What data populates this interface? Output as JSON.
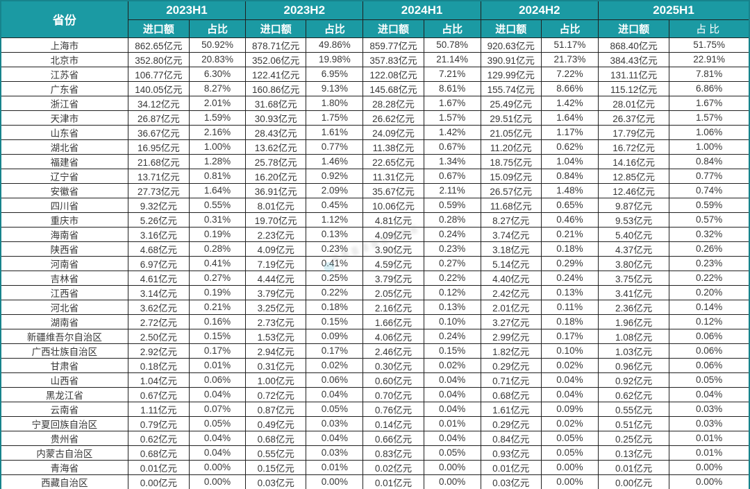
{
  "colors": {
    "header_bg": "#1b9aa3",
    "header_text": "#ffffff",
    "body_text": "#373737",
    "border": "#1f1f1f",
    "watermark_dot": "#6ec3d4"
  },
  "header": {
    "province_label": "省份",
    "amount_label": "进口额",
    "share_label": "占比",
    "periods": [
      {
        "label": "2023H1"
      },
      {
        "label": "2023H2"
      },
      {
        "label": "2024H1"
      },
      {
        "label": "2024H2"
      },
      {
        "label": "2025H1"
      }
    ]
  },
  "rows": [
    {
      "province": "上海市",
      "cells": [
        "862.65亿元",
        "50.92%",
        "878.71亿元",
        "49.86%",
        "859.77亿元",
        "50.78%",
        "920.63亿元",
        "51.17%",
        "868.40亿元",
        "51.75%"
      ]
    },
    {
      "province": "北京市",
      "cells": [
        "352.80亿元",
        "20.83%",
        "352.06亿元",
        "19.98%",
        "357.83亿元",
        "21.14%",
        "390.91亿元",
        "21.73%",
        "384.43亿元",
        "22.91%"
      ]
    },
    {
      "province": "江苏省",
      "cells": [
        "106.77亿元",
        "6.30%",
        "122.41亿元",
        "6.95%",
        "122.08亿元",
        "7.21%",
        "129.99亿元",
        "7.22%",
        "131.11亿元",
        "7.81%"
      ]
    },
    {
      "province": "广东省",
      "cells": [
        "140.05亿元",
        "8.27%",
        "160.86亿元",
        "9.13%",
        "145.68亿元",
        "8.61%",
        "155.74亿元",
        "8.66%",
        "115.12亿元",
        "6.86%"
      ]
    },
    {
      "province": "浙江省",
      "cells": [
        "34.12亿元",
        "2.01%",
        "31.68亿元",
        "1.80%",
        "28.28亿元",
        "1.67%",
        "25.49亿元",
        "1.42%",
        "28.01亿元",
        "1.67%"
      ]
    },
    {
      "province": "天津市",
      "cells": [
        "26.87亿元",
        "1.59%",
        "30.93亿元",
        "1.75%",
        "26.62亿元",
        "1.57%",
        "29.51亿元",
        "1.64%",
        "26.37亿元",
        "1.57%"
      ]
    },
    {
      "province": "山东省",
      "cells": [
        "36.67亿元",
        "2.16%",
        "28.43亿元",
        "1.61%",
        "24.09亿元",
        "1.42%",
        "21.05亿元",
        "1.17%",
        "17.79亿元",
        "1.06%"
      ]
    },
    {
      "province": "湖北省",
      "cells": [
        "16.95亿元",
        "1.00%",
        "13.62亿元",
        "0.77%",
        "11.38亿元",
        "0.67%",
        "11.20亿元",
        "0.62%",
        "16.72亿元",
        "1.00%"
      ]
    },
    {
      "province": "福建省",
      "cells": [
        "21.68亿元",
        "1.28%",
        "25.78亿元",
        "1.46%",
        "22.65亿元",
        "1.34%",
        "18.75亿元",
        "1.04%",
        "14.16亿元",
        "0.84%"
      ]
    },
    {
      "province": "辽宁省",
      "cells": [
        "13.71亿元",
        "0.81%",
        "16.20亿元",
        "0.92%",
        "11.31亿元",
        "0.67%",
        "15.09亿元",
        "0.84%",
        "12.85亿元",
        "0.77%"
      ]
    },
    {
      "province": "安徽省",
      "cells": [
        "27.73亿元",
        "1.64%",
        "36.91亿元",
        "2.09%",
        "35.67亿元",
        "2.11%",
        "26.57亿元",
        "1.48%",
        "12.46亿元",
        "0.74%"
      ]
    },
    {
      "province": "四川省",
      "cells": [
        "9.32亿元",
        "0.55%",
        "8.01亿元",
        "0.45%",
        "10.06亿元",
        "0.59%",
        "11.68亿元",
        "0.65%",
        "9.87亿元",
        "0.59%"
      ]
    },
    {
      "province": "重庆市",
      "cells": [
        "5.26亿元",
        "0.31%",
        "19.70亿元",
        "1.12%",
        "4.81亿元",
        "0.28%",
        "8.27亿元",
        "0.46%",
        "9.53亿元",
        "0.57%"
      ]
    },
    {
      "province": "海南省",
      "cells": [
        "3.16亿元",
        "0.19%",
        "2.23亿元",
        "0.13%",
        "4.09亿元",
        "0.24%",
        "3.74亿元",
        "0.21%",
        "5.40亿元",
        "0.32%"
      ]
    },
    {
      "province": "陕西省",
      "cells": [
        "4.68亿元",
        "0.28%",
        "4.09亿元",
        "0.23%",
        "3.90亿元",
        "0.23%",
        "3.18亿元",
        "0.18%",
        "4.37亿元",
        "0.26%"
      ]
    },
    {
      "province": "河南省",
      "cells": [
        "6.97亿元",
        "0.41%",
        "7.19亿元",
        "0.41%",
        "4.59亿元",
        "0.27%",
        "5.14亿元",
        "0.29%",
        "3.80亿元",
        "0.23%"
      ]
    },
    {
      "province": "吉林省",
      "cells": [
        "4.61亿元",
        "0.27%",
        "4.44亿元",
        "0.25%",
        "3.79亿元",
        "0.22%",
        "4.40亿元",
        "0.24%",
        "3.75亿元",
        "0.22%"
      ]
    },
    {
      "province": "江西省",
      "cells": [
        "3.14亿元",
        "0.19%",
        "3.79亿元",
        "0.22%",
        "2.05亿元",
        "0.12%",
        "2.42亿元",
        "0.13%",
        "3.41亿元",
        "0.20%"
      ]
    },
    {
      "province": "河北省",
      "cells": [
        "3.62亿元",
        "0.21%",
        "3.25亿元",
        "0.18%",
        "2.16亿元",
        "0.13%",
        "2.01亿元",
        "0.11%",
        "2.36亿元",
        "0.14%"
      ]
    },
    {
      "province": "湖南省",
      "cells": [
        "2.72亿元",
        "0.16%",
        "2.73亿元",
        "0.15%",
        "1.66亿元",
        "0.10%",
        "3.27亿元",
        "0.18%",
        "1.96亿元",
        "0.12%"
      ]
    },
    {
      "province": "新疆维吾尔自治区",
      "cells": [
        "2.50亿元",
        "0.15%",
        "1.53亿元",
        "0.09%",
        "4.06亿元",
        "0.24%",
        "2.99亿元",
        "0.17%",
        "1.08亿元",
        "0.06%"
      ]
    },
    {
      "province": "广西壮族自治区",
      "cells": [
        "2.92亿元",
        "0.17%",
        "2.94亿元",
        "0.17%",
        "2.46亿元",
        "0.15%",
        "1.82亿元",
        "0.10%",
        "1.03亿元",
        "0.06%"
      ]
    },
    {
      "province": "甘肃省",
      "cells": [
        "0.18亿元",
        "0.01%",
        "0.31亿元",
        "0.02%",
        "0.30亿元",
        "0.02%",
        "0.29亿元",
        "0.02%",
        "0.96亿元",
        "0.06%"
      ]
    },
    {
      "province": "山西省",
      "cells": [
        "1.04亿元",
        "0.06%",
        "1.00亿元",
        "0.06%",
        "0.60亿元",
        "0.04%",
        "0.71亿元",
        "0.04%",
        "0.92亿元",
        "0.05%"
      ]
    },
    {
      "province": "黑龙江省",
      "cells": [
        "0.67亿元",
        "0.04%",
        "0.72亿元",
        "0.04%",
        "0.70亿元",
        "0.04%",
        "0.68亿元",
        "0.04%",
        "0.62亿元",
        "0.04%"
      ]
    },
    {
      "province": "云南省",
      "cells": [
        "1.11亿元",
        "0.07%",
        "0.87亿元",
        "0.05%",
        "0.76亿元",
        "0.04%",
        "1.61亿元",
        "0.09%",
        "0.55亿元",
        "0.03%"
      ]
    },
    {
      "province": "宁夏回族自治区",
      "cells": [
        "0.79亿元",
        "0.05%",
        "0.49亿元",
        "0.03%",
        "0.14亿元",
        "0.01%",
        "0.29亿元",
        "0.02%",
        "0.51亿元",
        "0.03%"
      ]
    },
    {
      "province": "贵州省",
      "cells": [
        "0.62亿元",
        "0.04%",
        "0.68亿元",
        "0.04%",
        "0.66亿元",
        "0.04%",
        "0.84亿元",
        "0.05%",
        "0.25亿元",
        "0.01%"
      ]
    },
    {
      "province": "内蒙古自治区",
      "cells": [
        "0.68亿元",
        "0.04%",
        "0.55亿元",
        "0.03%",
        "0.83亿元",
        "0.05%",
        "0.93亿元",
        "0.05%",
        "0.13亿元",
        "0.01%"
      ]
    },
    {
      "province": "青海省",
      "cells": [
        "0.01亿元",
        "0.00%",
        "0.15亿元",
        "0.01%",
        "0.02亿元",
        "0.00%",
        "0.01亿元",
        "0.00%",
        "0.01亿元",
        "0.00%"
      ]
    },
    {
      "province": "西藏自治区",
      "cells": [
        "0.00亿元",
        "0.00%",
        "0.03亿元",
        "0.00%",
        "0.01亿元",
        "0.00%",
        "0.03亿元",
        "0.00%",
        "0.00亿元",
        "0.00%"
      ]
    }
  ]
}
